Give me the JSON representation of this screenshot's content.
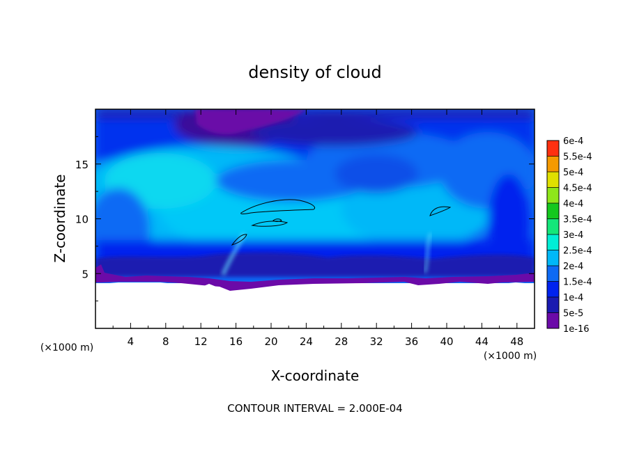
{
  "chart_data": {
    "type": "heatmap",
    "title": "density of cloud",
    "xlabel": "X-coordinate",
    "ylabel": "Z-coordinate",
    "x_unit": "(×1000 m)",
    "y_unit": "(×1000 m)",
    "xlim": [
      0,
      50
    ],
    "ylim": [
      0,
      20
    ],
    "x_ticks": [
      "4",
      "8",
      "12",
      "16",
      "20",
      "24",
      "28",
      "32",
      "36",
      "40",
      "44",
      "48"
    ],
    "y_ticks": [
      "5",
      "10",
      "15"
    ],
    "colorbar": {
      "levels": [
        "1e-16",
        "5e-5",
        "1e-4",
        "1.5e-4",
        "2e-4",
        "2.5e-4",
        "3e-4",
        "3.5e-4",
        "4e-4",
        "4.5e-4",
        "5e-4",
        "5.5e-4",
        "6e-4"
      ],
      "colors": [
        "#6b0aa8",
        "#1a1ab0",
        "#0022ee",
        "#0e6af4",
        "#00b8f8",
        "#00eed6",
        "#14e67a",
        "#14c81e",
        "#8ee61a",
        "#e0e000",
        "#f59a00",
        "#ff3010",
        "#ff8aa0"
      ]
    },
    "contour_interval_text": "CONTOUR INTERVAL = 2.000E-04"
  }
}
